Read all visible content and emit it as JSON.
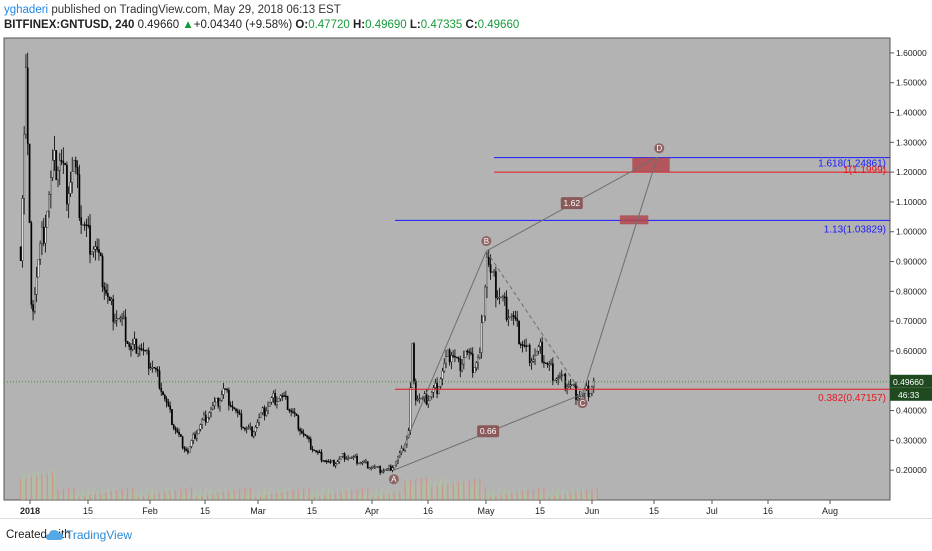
{
  "header": {
    "author": "yghaderi",
    "published": "published on TradingView.com, May 29, 2018 06:13 EST",
    "symbol": "BITFINEX:GNTUSD, 240",
    "last": "0.49660",
    "change_arrow": "▲",
    "change": "+0.04340 (+9.58%)",
    "open_label": "O:",
    "open": "0.47720",
    "high_label": "H:",
    "high": "0.49690",
    "low_label": "L:",
    "low": "0.47335",
    "close_label": "C:",
    "close": "0.49660"
  },
  "footer": {
    "created_with": "Created with",
    "brand": "TradingView",
    "logo_icon": "tradingview-cloud-icon"
  },
  "colors": {
    "plot_bg": "#b3b3b3",
    "candle": "#000000",
    "fib_blue": "#1a1aff",
    "fib_red": "#e8171f",
    "zone": "#b2464c",
    "pattern_line": "#6e6e6e",
    "label_box": "#8a5a5a",
    "price_tag": "#1f4a1f"
  },
  "chart_data": {
    "type": "candlestick",
    "y_axis": {
      "ticks": [
        "1.60000",
        "1.50000",
        "1.40000",
        "1.30000",
        "1.20000",
        "1.10000",
        "1.00000",
        "0.90000",
        "0.80000",
        "0.70000",
        "0.60000",
        "0.50000",
        "0.40000",
        "0.30000",
        "0.20000"
      ],
      "range": [
        0.1,
        1.65
      ],
      "current_price": "0.49660",
      "countdown": "46:33"
    },
    "x_axis": {
      "ticks": [
        "2018",
        "15",
        "Feb",
        "15",
        "Mar",
        "15",
        "Apr",
        "16",
        "May",
        "15",
        "Jun",
        "15",
        "Jul",
        "16",
        "Aug"
      ]
    },
    "price_path": [
      [
        0,
        0.95
      ],
      [
        3,
        1.55
      ],
      [
        6,
        0.72
      ],
      [
        10,
        0.9
      ],
      [
        14,
        1.05
      ],
      [
        18,
        1.2
      ],
      [
        22,
        1.25
      ],
      [
        26,
        1.15
      ],
      [
        30,
        1.22
      ],
      [
        34,
        1.05
      ],
      [
        38,
        0.98
      ],
      [
        42,
        0.95
      ],
      [
        46,
        0.85
      ],
      [
        50,
        0.75
      ],
      [
        54,
        0.72
      ],
      [
        58,
        0.68
      ],
      [
        62,
        0.6
      ],
      [
        66,
        0.63
      ],
      [
        70,
        0.58
      ],
      [
        74,
        0.55
      ],
      [
        78,
        0.5
      ],
      [
        82,
        0.42
      ],
      [
        86,
        0.35
      ],
      [
        90,
        0.3
      ],
      [
        94,
        0.26
      ],
      [
        98,
        0.32
      ],
      [
        102,
        0.36
      ],
      [
        106,
        0.4
      ],
      [
        110,
        0.42
      ],
      [
        114,
        0.47
      ],
      [
        118,
        0.43
      ],
      [
        122,
        0.38
      ],
      [
        126,
        0.34
      ],
      [
        130,
        0.33
      ],
      [
        134,
        0.37
      ],
      [
        138,
        0.41
      ],
      [
        142,
        0.44
      ],
      [
        146,
        0.45
      ],
      [
        150,
        0.42
      ],
      [
        154,
        0.38
      ],
      [
        158,
        0.33
      ],
      [
        162,
        0.29
      ],
      [
        166,
        0.26
      ],
      [
        170,
        0.24
      ],
      [
        174,
        0.22
      ],
      [
        178,
        0.23
      ],
      [
        182,
        0.25
      ],
      [
        186,
        0.24
      ],
      [
        190,
        0.23
      ],
      [
        194,
        0.22
      ],
      [
        198,
        0.21
      ],
      [
        202,
        0.2
      ],
      [
        206,
        0.2
      ],
      [
        210,
        0.22
      ],
      [
        214,
        0.26
      ],
      [
        218,
        0.33
      ],
      [
        220,
        0.6
      ],
      [
        222,
        0.45
      ],
      [
        226,
        0.43
      ],
      [
        230,
        0.45
      ],
      [
        234,
        0.48
      ],
      [
        238,
        0.55
      ],
      [
        242,
        0.6
      ],
      [
        246,
        0.55
      ],
      [
        250,
        0.6
      ],
      [
        254,
        0.55
      ],
      [
        258,
        0.58
      ],
      [
        262,
        0.93
      ],
      [
        264,
        0.85
      ],
      [
        268,
        0.8
      ],
      [
        272,
        0.75
      ],
      [
        276,
        0.72
      ],
      [
        280,
        0.65
      ],
      [
        284,
        0.6
      ],
      [
        288,
        0.58
      ],
      [
        292,
        0.6
      ],
      [
        296,
        0.55
      ],
      [
        300,
        0.52
      ],
      [
        304,
        0.5
      ],
      [
        308,
        0.49
      ],
      [
        312,
        0.46
      ],
      [
        316,
        0.45
      ],
      [
        320,
        0.47
      ],
      [
        322,
        0.4966
      ]
    ],
    "volume_series": "volume bars along bottom",
    "pattern": {
      "points": [
        {
          "label": "A",
          "x": 210,
          "y": 0.2
        },
        {
          "label": "B",
          "x": 262,
          "y": 0.935
        },
        {
          "label": "C",
          "x": 316,
          "y": 0.455
        },
        {
          "label": "D",
          "x": 358,
          "y": 1.25
        }
      ],
      "ratios": [
        "1.62",
        "0.66"
      ]
    },
    "fib_levels": [
      {
        "label": "1.618(1.24861)",
        "value": 1.24861,
        "color": "blue"
      },
      {
        "label": "1(1.1999)",
        "value": 1.1999,
        "color": "red"
      },
      {
        "label": "1.13(1.03829)",
        "value": 1.03829,
        "color": "blue"
      },
      {
        "label": "0.382(0.47157)",
        "value": 0.47157,
        "color": "red"
      }
    ],
    "zones": [
      {
        "x_start": 344,
        "x_end": 365,
        "y_low": 1.2,
        "y_high": 1.248
      },
      {
        "x_start": 337,
        "x_end": 353,
        "y_low": 1.025,
        "y_high": 1.055
      }
    ]
  }
}
